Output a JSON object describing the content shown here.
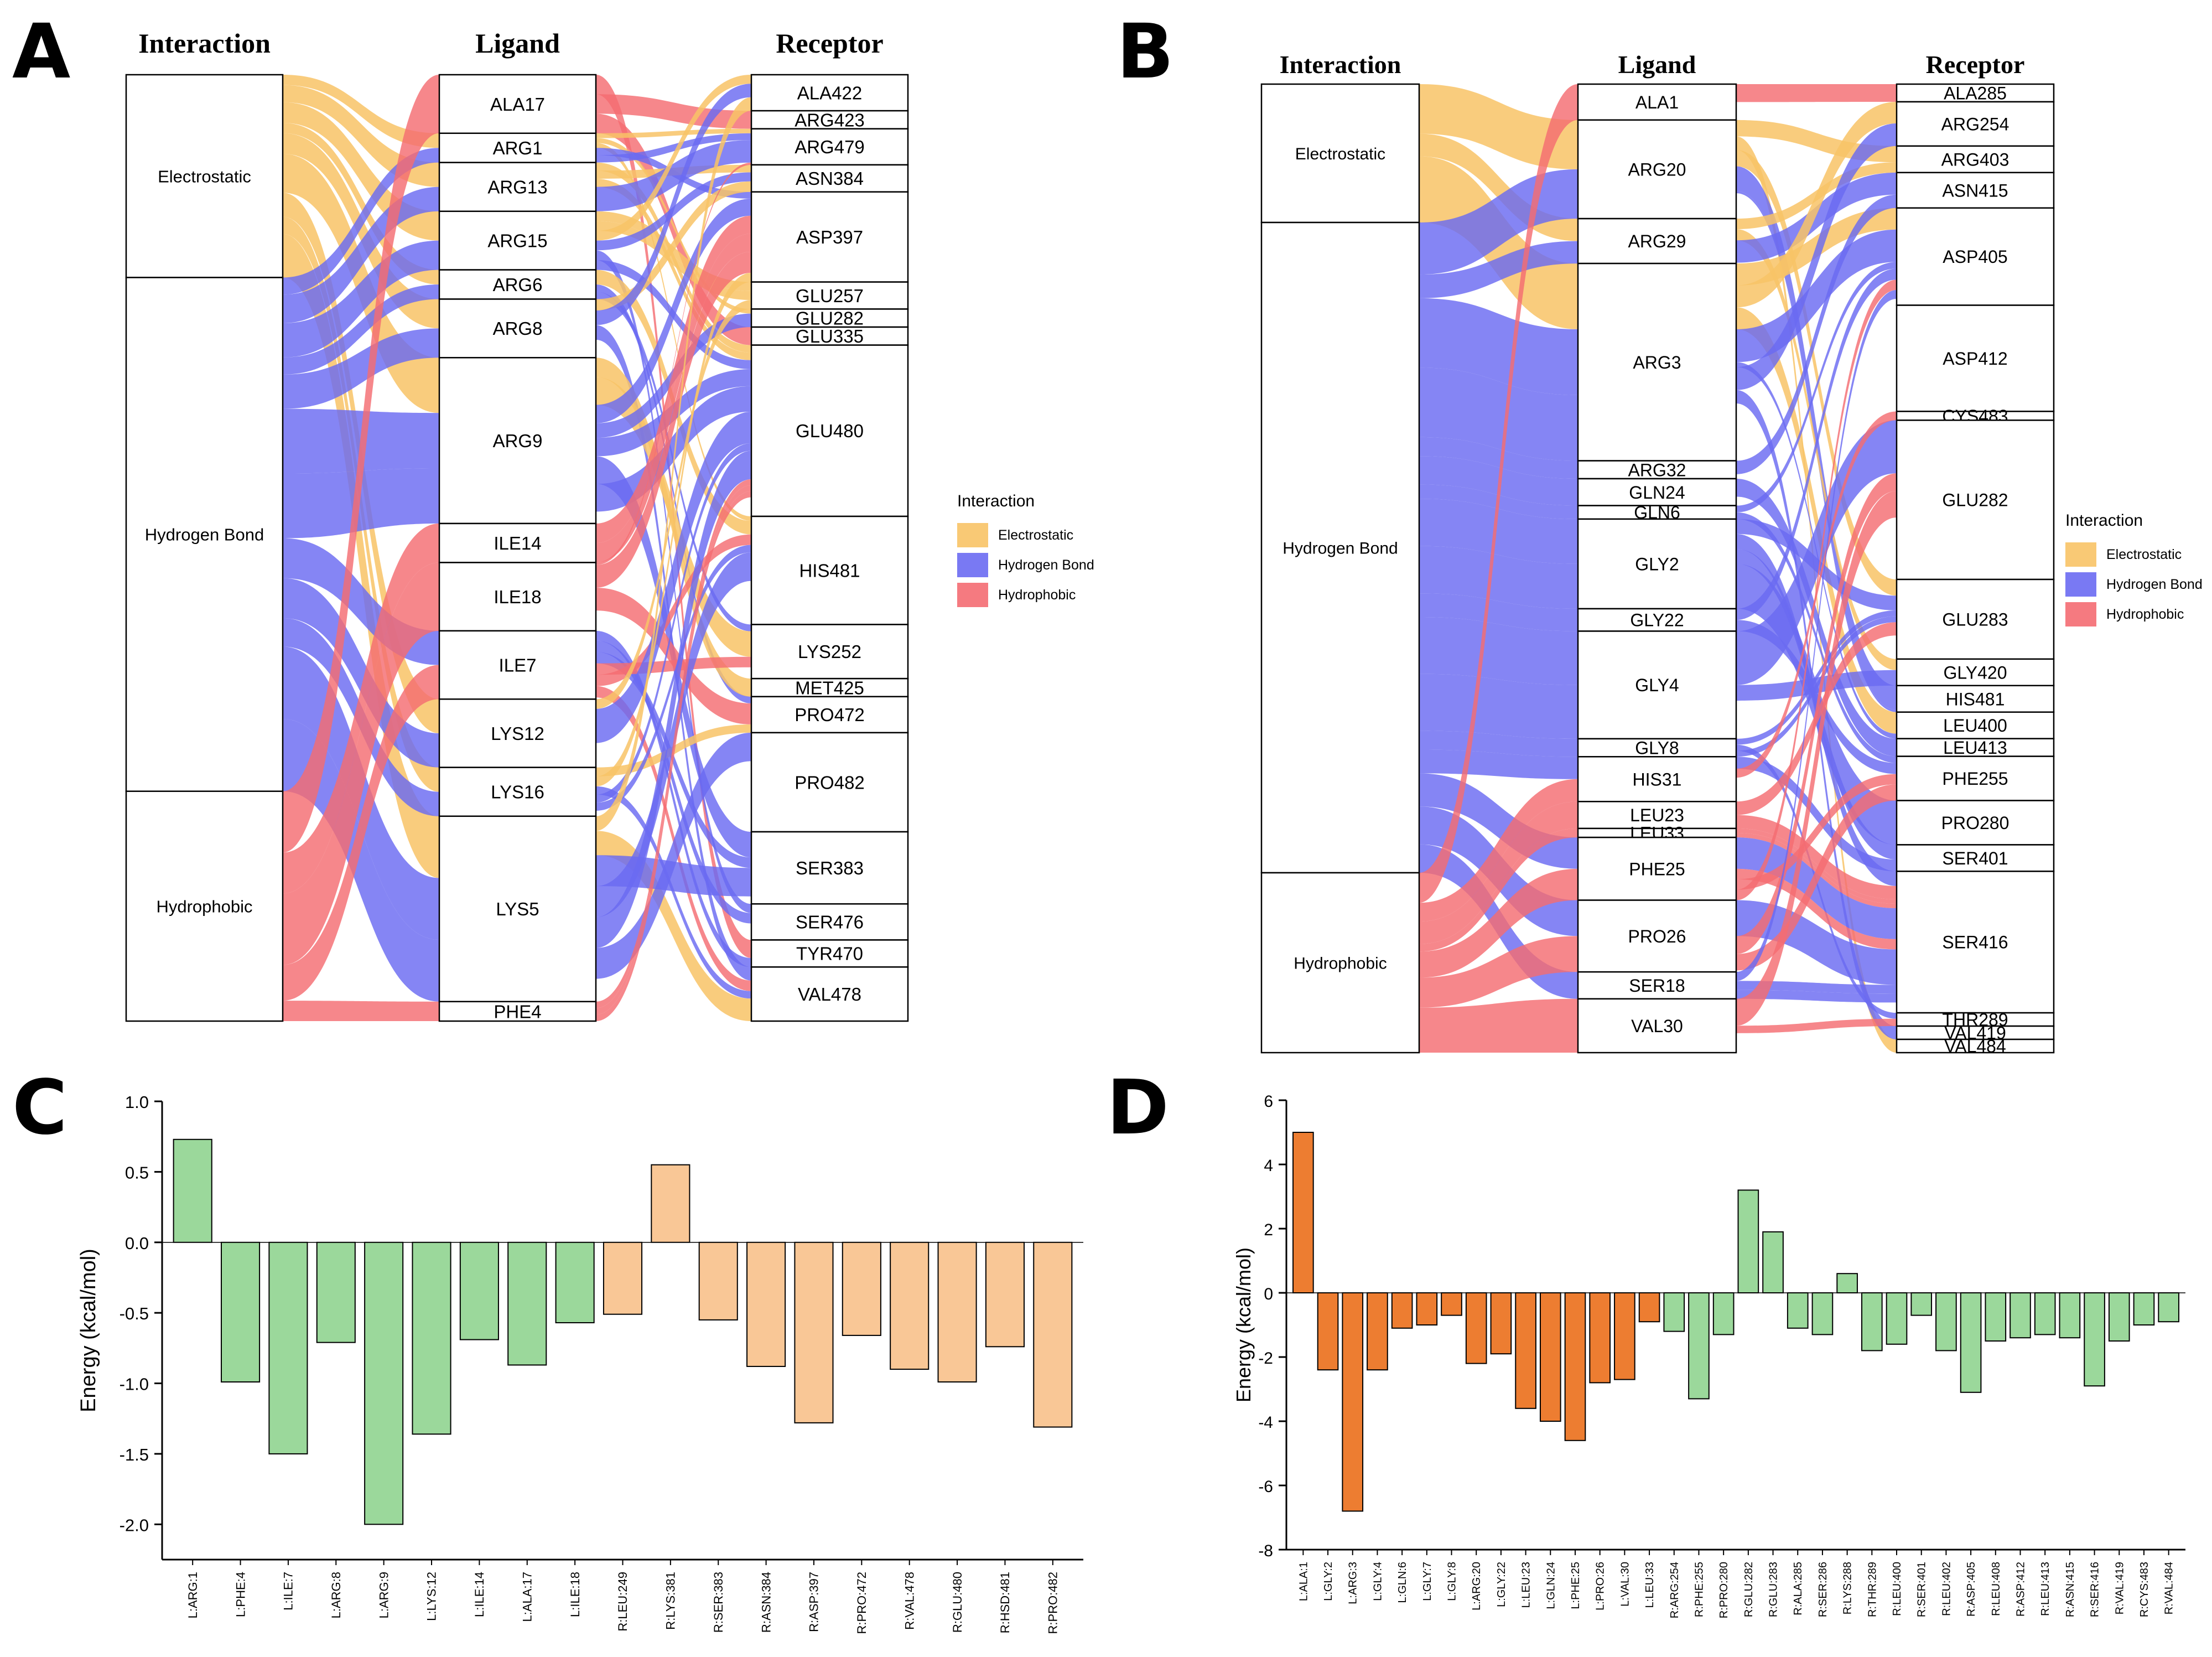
{
  "panel_letters": [
    "A",
    "B",
    "C",
    "D"
  ],
  "colors": {
    "electrostatic": "#F8C366",
    "hydrogen": "#6A6AF2",
    "hydrophobic": "#F46C72",
    "green_bar": "#9BD89B",
    "peach_bar": "#F9C796",
    "orange_bar": "#ED7D31"
  },
  "panel_a": {
    "headers": [
      "Interaction",
      "Ligand",
      "Receptor"
    ],
    "interactions": [
      {
        "label": "Electrostatic",
        "weight": 30
      },
      {
        "label": "Hydrogen Bond",
        "weight": 76
      },
      {
        "label": "Hydrophobic",
        "weight": 34
      }
    ],
    "ligands": [
      {
        "label": "ALA17",
        "weight": 6
      },
      {
        "label": "ARG1",
        "weight": 3
      },
      {
        "label": "ARG13",
        "weight": 5
      },
      {
        "label": "ARG15",
        "weight": 6
      },
      {
        "label": "ARG6",
        "weight": 3
      },
      {
        "label": "ARG8",
        "weight": 6
      },
      {
        "label": "ARG9",
        "weight": 17
      },
      {
        "label": "ILE14",
        "weight": 4
      },
      {
        "label": "ILE18",
        "weight": 7
      },
      {
        "label": "ILE7",
        "weight": 7
      },
      {
        "label": "LYS12",
        "weight": 7
      },
      {
        "label": "LYS16",
        "weight": 5
      },
      {
        "label": "LYS5",
        "weight": 19
      },
      {
        "label": "PHE4",
        "weight": 2
      }
    ],
    "receptors": [
      {
        "label": "ALA422",
        "weight": 4
      },
      {
        "label": "ARG423",
        "weight": 2
      },
      {
        "label": "ARG479",
        "weight": 4
      },
      {
        "label": "ASN384",
        "weight": 3
      },
      {
        "label": "ASP397",
        "weight": 10
      },
      {
        "label": "GLU257",
        "weight": 3
      },
      {
        "label": "GLU282",
        "weight": 2
      },
      {
        "label": "GLU335",
        "weight": 2
      },
      {
        "label": "GLU480",
        "weight": 19
      },
      {
        "label": "HIS481",
        "weight": 12
      },
      {
        "label": "LYS252",
        "weight": 6
      },
      {
        "label": "MET425",
        "weight": 2
      },
      {
        "label": "PRO472",
        "weight": 4
      },
      {
        "label": "PRO482",
        "weight": 11
      },
      {
        "label": "SER383",
        "weight": 8
      },
      {
        "label": "SER476",
        "weight": 4
      },
      {
        "label": "TYR470",
        "weight": 3
      },
      {
        "label": "VAL478",
        "weight": 6
      }
    ],
    "legend": {
      "title": "Interaction",
      "items": [
        "Electrostatic",
        "Hydrogen Bond",
        "Hydrophobic"
      ]
    }
  },
  "panel_b": {
    "headers": [
      "Interaction",
      "Ligand",
      "Receptor"
    ],
    "interactions": [
      {
        "label": "Electrostatic",
        "weight": 20
      },
      {
        "label": "Hydrogen Bond",
        "weight": 94
      },
      {
        "label": "Hydrophobic",
        "weight": 26
      }
    ],
    "ligands": [
      {
        "label": "ALA1",
        "weight": 4
      },
      {
        "label": "ARG20",
        "weight": 11
      },
      {
        "label": "ARG29",
        "weight": 5
      },
      {
        "label": "ARG3",
        "weight": 22
      },
      {
        "label": "ARG32",
        "weight": 2
      },
      {
        "label": "GLN24",
        "weight": 3
      },
      {
        "label": "GLN6",
        "weight": 1.5
      },
      {
        "label": "GLY2",
        "weight": 10
      },
      {
        "label": "GLY22",
        "weight": 2.5
      },
      {
        "label": "GLY4",
        "weight": 12
      },
      {
        "label": "GLY8",
        "weight": 2
      },
      {
        "label": "HIS31",
        "weight": 5
      },
      {
        "label": "LEU23",
        "weight": 3
      },
      {
        "label": "LEU33",
        "weight": 1
      },
      {
        "label": "PHE25",
        "weight": 7
      },
      {
        "label": "PRO26",
        "weight": 8
      },
      {
        "label": "SER18",
        "weight": 3
      },
      {
        "label": "VAL30",
        "weight": 6
      }
    ],
    "receptors": [
      {
        "label": "ALA285",
        "weight": 2
      },
      {
        "label": "ARG254",
        "weight": 5
      },
      {
        "label": "ARG403",
        "weight": 3
      },
      {
        "label": "ASN415",
        "weight": 4
      },
      {
        "label": "ASP405",
        "weight": 11
      },
      {
        "label": "ASP412",
        "weight": 12
      },
      {
        "label": "CYS483",
        "weight": 1
      },
      {
        "label": "GLU282",
        "weight": 18
      },
      {
        "label": "GLU283",
        "weight": 9
      },
      {
        "label": "GLY420",
        "weight": 3
      },
      {
        "label": "HIS481",
        "weight": 3
      },
      {
        "label": "LEU400",
        "weight": 3
      },
      {
        "label": "LEU413",
        "weight": 2
      },
      {
        "label": "PHE255",
        "weight": 5
      },
      {
        "label": "PRO280",
        "weight": 5
      },
      {
        "label": "SER401",
        "weight": 3
      },
      {
        "label": "SER416",
        "weight": 16
      },
      {
        "label": "THR289",
        "weight": 1.5
      },
      {
        "label": "VAL419",
        "weight": 1.5
      },
      {
        "label": "VAL484",
        "weight": 1.5
      }
    ],
    "legend": {
      "title": "Interaction",
      "items": [
        "Electrostatic",
        "Hydrogen Bond",
        "Hydrophobic"
      ]
    }
  },
  "chart_data": [
    {
      "panel": "C",
      "type": "bar",
      "title": "",
      "xlabel": "",
      "ylabel": "Energy (kcal/mol)",
      "ylim": [
        -2.25,
        1.0
      ],
      "yticks": [
        "1.0",
        "0.5",
        "0.0",
        "-0.5",
        "-1.0",
        "-1.5",
        "-2.0"
      ],
      "ytick_values": [
        1.0,
        0.5,
        0.0,
        -0.5,
        -1.0,
        -1.5,
        -2.0
      ],
      "categories": [
        "L:ARG:1",
        "L:PHE:4",
        "L:ILE:7",
        "L:ARG:8",
        "L:ARG:9",
        "L:LYS:12",
        "L:ILE:14",
        "L:ALA:17",
        "L:ILE:18",
        "R:LEU:249",
        "R:LYS:381",
        "R:SER:383",
        "R:ASN:384",
        "R:ASP:397",
        "R:PRO:472",
        "R:VAL:478",
        "R:GLU:480",
        "R:HSD:481",
        "R:PRO:482"
      ],
      "values": [
        0.73,
        -0.99,
        -1.5,
        -0.71,
        -2.0,
        -1.36,
        -0.69,
        -0.87,
        -0.57,
        -0.51,
        0.55,
        -0.55,
        -0.88,
        -1.28,
        -0.66,
        -0.9,
        -0.99,
        -0.74,
        -1.31
      ],
      "bar_colors": [
        "green",
        "green",
        "green",
        "green",
        "green",
        "green",
        "green",
        "green",
        "green",
        "peach",
        "peach",
        "peach",
        "peach",
        "peach",
        "peach",
        "peach",
        "peach",
        "peach",
        "peach"
      ]
    },
    {
      "panel": "D",
      "type": "bar",
      "title": "",
      "xlabel": "",
      "ylabel": "Energy (kcal/mol)",
      "ylim": [
        -8,
        6
      ],
      "yticks": [
        "6",
        "4",
        "2",
        "0",
        "-2",
        "-4",
        "-6",
        "-8"
      ],
      "ytick_values": [
        6,
        4,
        2,
        0,
        -2,
        -4,
        -6,
        -8
      ],
      "categories": [
        "L:ALA:1",
        "L:GLY:2",
        "L:ARG:3",
        "L:GLY:4",
        "L:GLN:6",
        "L:GLY:7",
        "L:GLY:8",
        "L:ARG:20",
        "L:GLY:22",
        "L:LEU:23",
        "L:GLN:24",
        "L:PHE:25",
        "L:PRO:26",
        "L:VAL:30",
        "L:LEU:33",
        "R:ARG:254",
        "R:PHE:255",
        "R:PRO:280",
        "R:GLU:282",
        "R:GLU:283",
        "R:ALA:285",
        "R:SER:286",
        "R:LYS:288",
        "R:THR:289",
        "R:LEU:400",
        "R:SER:401",
        "R:LEU:402",
        "R:ASP:405",
        "R:LEU:408",
        "R:ASP:412",
        "R:LEU:413",
        "R:ASN:415",
        "R:SER:416",
        "R:VAL:419",
        "R:CYS:483",
        "R:VAL:484"
      ],
      "values": [
        5.0,
        -2.4,
        -6.8,
        -2.4,
        -1.1,
        -1.0,
        -0.7,
        -2.2,
        -1.9,
        -3.6,
        -4.0,
        -4.6,
        -2.8,
        -2.7,
        -0.9,
        -1.2,
        -3.3,
        -1.3,
        3.2,
        1.9,
        -1.1,
        -1.3,
        0.6,
        -1.8,
        -1.6,
        -0.7,
        -1.8,
        -3.1,
        -1.5,
        -1.4,
        -1.3,
        -1.4,
        -2.9,
        -1.5,
        -1.0,
        -0.9
      ],
      "bar_colors": [
        "orange",
        "orange",
        "orange",
        "orange",
        "orange",
        "orange",
        "orange",
        "orange",
        "orange",
        "orange",
        "orange",
        "orange",
        "orange",
        "orange",
        "orange",
        "green",
        "green",
        "green",
        "green",
        "green",
        "green",
        "green",
        "green",
        "green",
        "green",
        "green",
        "green",
        "green",
        "green",
        "green",
        "green",
        "green",
        "green",
        "green",
        "green",
        "green"
      ]
    }
  ]
}
